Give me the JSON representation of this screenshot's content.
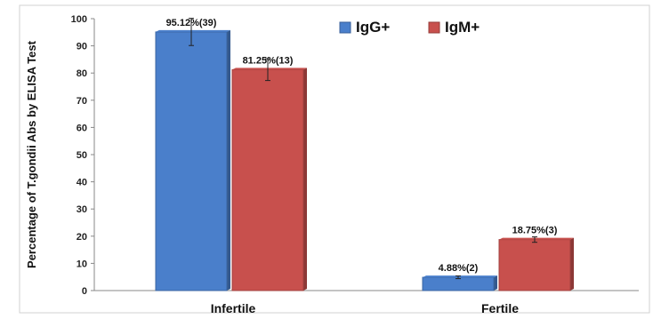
{
  "chart_data": {
    "type": "bar",
    "categories": [
      "Infertile",
      "Fertile"
    ],
    "series": [
      {
        "name": "IgG+",
        "color": "#4a7fcb",
        "values": [
          95.12,
          4.88
        ],
        "labels": [
          "95.12%(39)",
          "4.88%(2)"
        ],
        "error": [
          5,
          0.5
        ]
      },
      {
        "name": "IgM+",
        "color": "#c8504d",
        "values": [
          81.25,
          18.75
        ],
        "labels": [
          "81.25%(13)",
          "18.75%(3)"
        ],
        "error": [
          4,
          1
        ]
      }
    ],
    "yticks": [
      0,
      10,
      20,
      30,
      40,
      50,
      60,
      70,
      80,
      90,
      100
    ],
    "ylim": [
      0,
      100
    ],
    "ylabel": "Percentage of T.gondii Abs by ELISA Test",
    "xlabel": "",
    "legend_position": "top-right",
    "grid": false
  }
}
